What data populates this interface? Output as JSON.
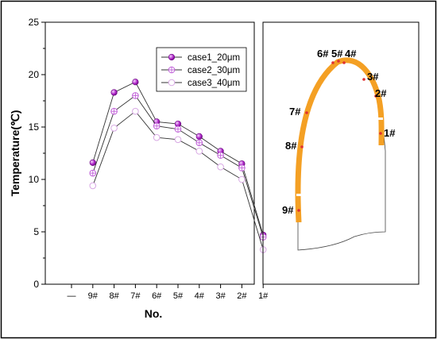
{
  "chart_data": {
    "type": "line",
    "xlabel": "No.",
    "ylabel": "Temperature(℃)",
    "categories": [
      "—",
      "9#",
      "8#",
      "7#",
      "6#",
      "5#",
      "4#",
      "3#",
      "2#",
      "1#"
    ],
    "yticks": [
      "0",
      "5",
      "10",
      "15",
      "20",
      "25"
    ],
    "ylim": [
      0,
      25
    ],
    "grid": false,
    "legend_position": "top-right",
    "series": [
      {
        "name": "case1_20μm",
        "marker": "filled-sphere",
        "color": "#b026c9",
        "values": [
          null,
          11.6,
          18.3,
          19.3,
          15.5,
          15.3,
          14.1,
          12.7,
          11.5,
          4.7
        ]
      },
      {
        "name": "case2_30μm",
        "marker": "crossed-circle",
        "color": "#c060d8",
        "values": [
          null,
          10.6,
          16.5,
          18.0,
          15.1,
          14.8,
          13.5,
          12.3,
          11.1,
          4.5
        ]
      },
      {
        "name": "case3_40μm",
        "marker": "open-circle",
        "color": "#d8a8e4",
        "values": [
          null,
          9.4,
          14.9,
          16.5,
          14.0,
          13.8,
          12.7,
          11.2,
          10.0,
          3.3
        ]
      }
    ]
  },
  "diagram": {
    "labels": [
      "6#",
      "5#",
      "4#",
      "3#",
      "2#",
      "1#",
      "7#",
      "8#",
      "9#"
    ],
    "stroke_color": "#f4a024",
    "point_color": "#e03030"
  }
}
